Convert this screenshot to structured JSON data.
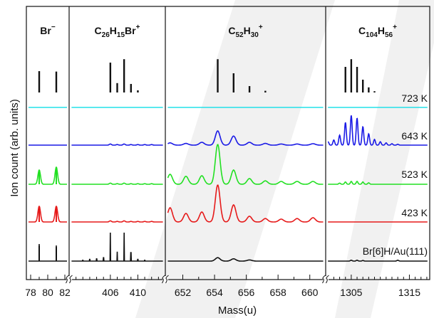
{
  "chart_data": {
    "type": "line",
    "xlabel": "Mass(u)",
    "ylabel": "Ion count (arb. units)",
    "series_names": [
      "723 K",
      "643 K",
      "523 K",
      "423 K",
      "Br[6]H/Au(111)"
    ],
    "colors": {
      "723 K": "#22e0e8",
      "643 K": "#1a1ae6",
      "523 K": "#22e022",
      "423 K": "#e61a1a",
      "Br[6]H/Au(111)": "#111111",
      "simulated": "#111111",
      "watermark": "#e8e8e8"
    },
    "panels": [
      {
        "title": {
          "pre": "Br",
          "sup": "−"
        },
        "xlim": [
          77.5,
          82.5
        ],
        "xticks": [
          78,
          80,
          82
        ],
        "xtick_labels": [
          "78",
          "80",
          "82"
        ],
        "minor_step": 1,
        "simulated": [
          [
            79,
            0.5
          ],
          [
            81,
            0.49
          ]
        ],
        "spectra": {
          "723 K": [],
          "643 K": [],
          "523 K": [
            [
              79,
              0.5
            ],
            [
              81,
              0.6
            ]
          ],
          "423 K": [
            [
              79,
              0.55
            ],
            [
              81,
              0.55
            ]
          ],
          "Br[6]H/Au(111)": [
            [
              79,
              0.6
            ],
            [
              81,
              0.55
            ]
          ]
        }
      },
      {
        "title": {
          "pre": "C",
          "sub1": "26",
          "mid": "H",
          "sub2": "15",
          "post": "Br",
          "sup": "+"
        },
        "xlim": [
          400,
          414
        ],
        "xticks": [
          406,
          410
        ],
        "xtick_labels": [
          "406",
          "410"
        ],
        "minor_step": 1,
        "simulated": [
          [
            406,
            0.7
          ],
          [
            407,
            0.22
          ],
          [
            408,
            0.78
          ],
          [
            409,
            0.2
          ],
          [
            410,
            0.05
          ]
        ],
        "spectra": {
          "723 K": [],
          "643 K": [
            [
              406,
              0.04
            ],
            [
              407,
              0.02
            ],
            [
              408,
              0.04
            ],
            [
              409,
              0.02
            ],
            [
              410,
              0.02
            ],
            [
              411,
              0.02
            ],
            [
              412,
              0.02
            ]
          ],
          "523 K": [
            [
              406,
              0.04
            ],
            [
              407,
              0.02
            ],
            [
              408,
              0.04
            ],
            [
              409,
              0.02
            ],
            [
              410,
              0.02
            ],
            [
              411,
              0.02
            ],
            [
              412,
              0.02
            ]
          ],
          "423 K": [
            [
              406,
              0.04
            ],
            [
              407,
              0.02
            ],
            [
              408,
              0.04
            ],
            [
              409,
              0.02
            ],
            [
              410,
              0.02
            ],
            [
              411,
              0.02
            ],
            [
              412,
              0.02
            ]
          ],
          "Br[6]H/Au(111)": [
            [
              402,
              0.03
            ],
            [
              403,
              0.06
            ],
            [
              404,
              0.08
            ],
            [
              405,
              0.12
            ],
            [
              406,
              1.0
            ],
            [
              407,
              0.33
            ],
            [
              408,
              1.0
            ],
            [
              409,
              0.3
            ],
            [
              410,
              0.06
            ],
            [
              411,
              0.03
            ]
          ]
        }
      },
      {
        "title": {
          "pre": "C",
          "sub1": "52",
          "mid": "H",
          "sub2": "30",
          "sup": "+"
        },
        "xlim": [
          650.9,
          661.0
        ],
        "xticks": [
          652,
          654,
          656,
          658,
          660
        ],
        "xtick_labels": [
          "652",
          "654",
          "656",
          "658",
          "660"
        ],
        "minor_step": 1,
        "simulated": [
          [
            654.2,
            0.78
          ],
          [
            655.2,
            0.45
          ],
          [
            656.2,
            0.15
          ],
          [
            657.2,
            0.04
          ]
        ],
        "spectra": {
          "723 K": [],
          "643 K": [
            [
              651.2,
              0.08
            ],
            [
              652.2,
              0.06
            ],
            [
              653.2,
              0.1
            ],
            [
              654.2,
              0.5
            ],
            [
              655.2,
              0.32
            ],
            [
              656.2,
              0.1
            ],
            [
              657.2,
              0.06
            ],
            [
              658.2,
              0.04
            ],
            [
              659.2,
              0.04
            ],
            [
              660.2,
              0.05
            ]
          ],
          "523 K": [
            [
              651.2,
              0.35
            ],
            [
              652.2,
              0.28
            ],
            [
              653.2,
              0.3
            ],
            [
              654.2,
              1.4
            ],
            [
              655.2,
              0.5
            ],
            [
              656.2,
              0.2
            ],
            [
              657.2,
              0.12
            ],
            [
              658.2,
              0.1
            ],
            [
              659.2,
              0.1
            ],
            [
              660.2,
              0.1
            ]
          ],
          "423 K": [
            [
              651.2,
              0.5
            ],
            [
              652.2,
              0.3
            ],
            [
              653.2,
              0.35
            ],
            [
              654.2,
              1.3
            ],
            [
              655.2,
              0.6
            ],
            [
              656.2,
              0.2
            ],
            [
              657.2,
              0.12
            ],
            [
              658.2,
              0.1
            ],
            [
              659.2,
              0.12
            ],
            [
              660.2,
              0.15
            ]
          ],
          "Br[6]H/Au(111)": [
            [
              654.2,
              0.12
            ],
            [
              655.2,
              0.08
            ],
            [
              656.2,
              0.04
            ]
          ]
        }
      },
      {
        "title": {
          "pre": "C",
          "sub1": "104",
          "mid": "H",
          "sub2": "56",
          "sup": "+"
        },
        "xlim": [
          1300.6,
          1318.5
        ],
        "xticks": [
          1305,
          1315
        ],
        "xtick_labels": [
          "1305",
          "1315"
        ],
        "minor_step": 1,
        "simulated": [
          [
            1304,
            0.6
          ],
          [
            1305,
            0.78
          ],
          [
            1306,
            0.6
          ],
          [
            1307,
            0.3
          ],
          [
            1308,
            0.12
          ],
          [
            1309,
            0.03
          ]
        ],
        "spectra": {
          "723 K": [],
          "643 K": [
            [
              1301,
              0.12
            ],
            [
              1302,
              0.18
            ],
            [
              1303,
              0.35
            ],
            [
              1304,
              0.8
            ],
            [
              1305,
              1.05
            ],
            [
              1306,
              0.95
            ],
            [
              1307,
              0.65
            ],
            [
              1308,
              0.4
            ],
            [
              1309,
              0.2
            ],
            [
              1310,
              0.12
            ],
            [
              1311,
              0.08
            ],
            [
              1312,
              0.05
            ],
            [
              1313,
              0.03
            ]
          ],
          "523 K": [
            [
              1303,
              0.04
            ],
            [
              1304,
              0.08
            ],
            [
              1305,
              0.1
            ],
            [
              1306,
              0.1
            ],
            [
              1307,
              0.08
            ],
            [
              1308,
              0.05
            ]
          ],
          "423 K": [],
          "Br[6]H/Au(111)": [
            [
              1305,
              0.03
            ],
            [
              1306,
              0.03
            ],
            [
              1307,
              0.02
            ],
            [
              1313,
              0.03
            ]
          ]
        }
      }
    ]
  }
}
